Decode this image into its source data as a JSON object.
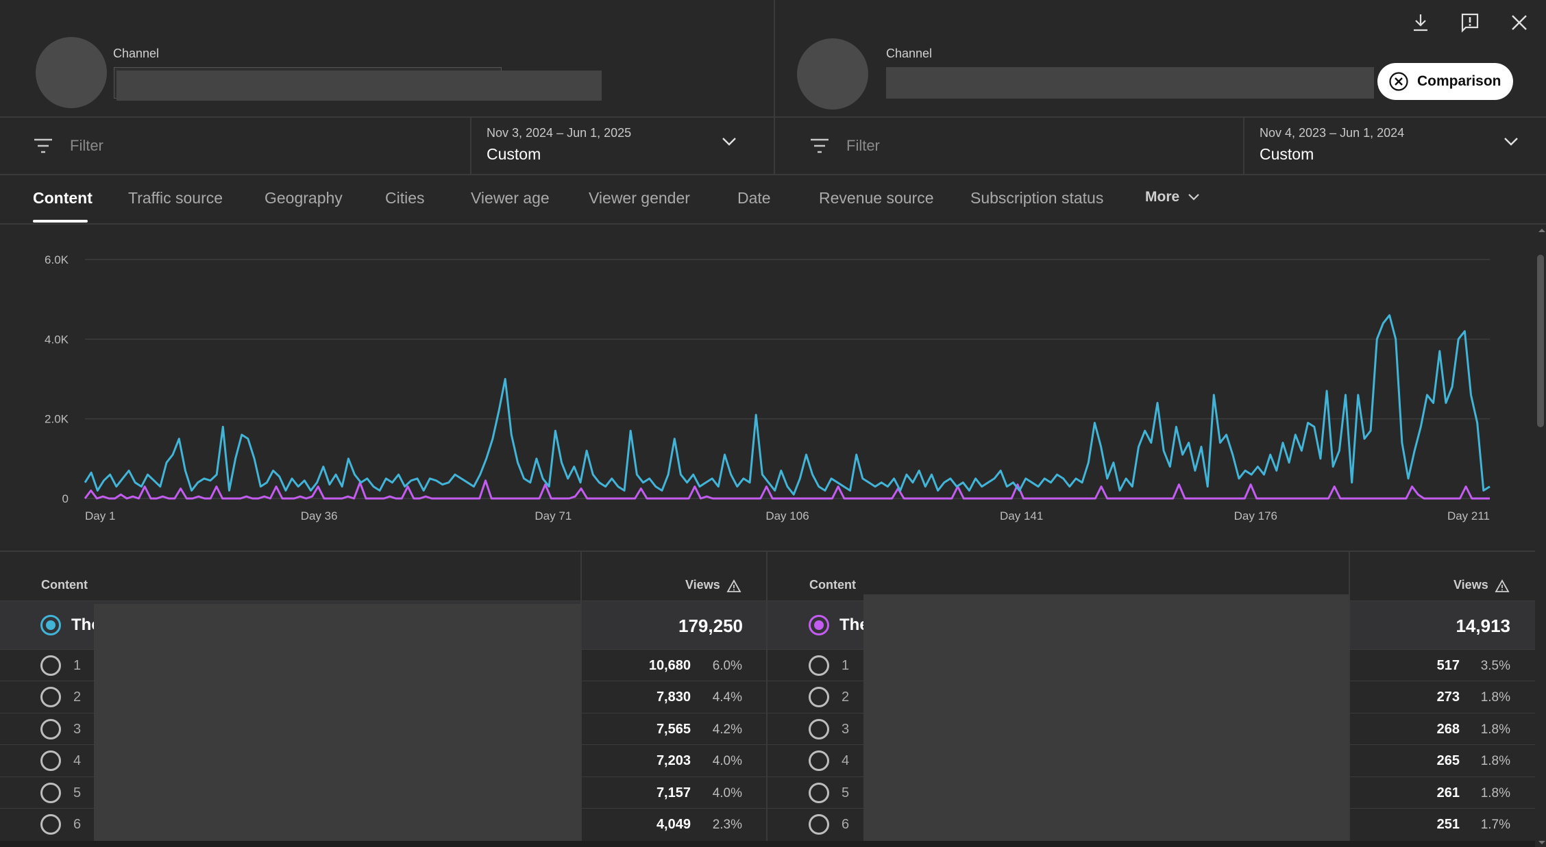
{
  "header": {
    "left": {
      "channel_label": "Channel"
    },
    "right": {
      "channel_label": "Channel"
    },
    "comparison_button": "Comparison",
    "icons": [
      "download-icon",
      "feedback-icon",
      "close-icon"
    ]
  },
  "filters": {
    "left": {
      "placeholder": "Filter",
      "date_range": "Nov 3, 2024 – Jun 1, 2025",
      "preset": "Custom"
    },
    "right": {
      "placeholder": "Filter",
      "date_range": "Nov 4, 2023 – Jun 1, 2024",
      "preset": "Custom"
    }
  },
  "tabs": [
    "Content",
    "Traffic source",
    "Geography",
    "Cities",
    "Viewer age",
    "Viewer gender",
    "Date",
    "Revenue source",
    "Subscription status",
    "More"
  ],
  "active_tab": "Content",
  "chart_data": {
    "type": "line",
    "y_ticks": [
      "6.0K",
      "4.0K",
      "2.0K",
      "0"
    ],
    "ylim": [
      0,
      6000
    ],
    "x_ticks": [
      "Day 1",
      "Day 36",
      "Day 71",
      "Day 106",
      "Day 141",
      "Day 176",
      "Day 211"
    ],
    "grid": true,
    "colors": {
      "primary": "#41b4d8",
      "secondary": "#c35cf0"
    },
    "series": [
      {
        "values": [
          400,
          650,
          200,
          450,
          600,
          300,
          500,
          700,
          400,
          300,
          600,
          450,
          300,
          900,
          1100,
          1500,
          700,
          200,
          400,
          500,
          450,
          600,
          1800,
          200,
          1000,
          1600,
          1500,
          1000,
          300,
          400,
          700,
          550,
          200,
          500,
          300,
          450,
          200,
          400,
          800,
          350,
          600,
          300,
          1000,
          600,
          400,
          500,
          300,
          200,
          500,
          400,
          600,
          300,
          450,
          500,
          200,
          500,
          450,
          350,
          400,
          600,
          500,
          400,
          300,
          600,
          1000,
          1500,
          2200,
          3000,
          1600,
          900,
          500,
          400,
          1000,
          500,
          300,
          1700,
          900,
          500,
          800,
          400,
          1200,
          600,
          400,
          300,
          500,
          300,
          200,
          1700,
          600,
          400,
          500,
          300,
          200,
          600,
          1500,
          600,
          400,
          600,
          300,
          400,
          500,
          300,
          1100,
          600,
          300,
          500,
          400,
          2100,
          600,
          400,
          200,
          700,
          300,
          100,
          500,
          1100,
          600,
          300,
          200,
          500,
          400,
          300,
          200,
          1100,
          500,
          400,
          300,
          400,
          300,
          500,
          200,
          600,
          400,
          700,
          300,
          600,
          200,
          400,
          500,
          300,
          400,
          200,
          500,
          300,
          400,
          500,
          700,
          300,
          400,
          200,
          500,
          400,
          300,
          500,
          400,
          600,
          500,
          300,
          500,
          400,
          900,
          1900,
          1300,
          500,
          900,
          200,
          500,
          300,
          1300,
          1700,
          1400,
          2400,
          1200,
          800,
          1800,
          1100,
          1400,
          700,
          1300,
          300,
          2600,
          1400,
          1600,
          1100,
          500,
          700,
          600,
          800,
          600,
          1100,
          700,
          1400,
          900,
          1600,
          1200,
          1900,
          1800,
          1000,
          2700,
          800,
          1200,
          2600,
          400,
          2600,
          1500,
          1700,
          4000,
          4400,
          4600,
          4000,
          1400,
          500,
          1200,
          1800,
          2600,
          2400,
          3700,
          2400,
          2800,
          4000,
          4200,
          2600,
          1900,
          200,
          300
        ]
      },
      {
        "values": [
          0,
          200,
          0,
          50,
          0,
          0,
          100,
          0,
          50,
          0,
          300,
          0,
          0,
          50,
          0,
          0,
          250,
          0,
          0,
          50,
          0,
          0,
          300,
          0,
          0,
          0,
          0,
          50,
          0,
          0,
          50,
          0,
          300,
          0,
          0,
          0,
          50,
          0,
          50,
          300,
          0,
          0,
          0,
          0,
          50,
          0,
          400,
          0,
          0,
          0,
          0,
          50,
          0,
          0,
          300,
          0,
          0,
          50,
          0,
          0,
          0,
          0,
          0,
          0,
          0,
          0,
          0,
          450,
          0,
          0,
          0,
          0,
          0,
          0,
          0,
          0,
          0,
          350,
          0,
          0,
          0,
          0,
          50,
          250,
          0,
          0,
          0,
          0,
          0,
          0,
          0,
          0,
          0,
          250,
          0,
          0,
          0,
          0,
          0,
          0,
          0,
          0,
          300,
          0,
          50,
          0,
          0,
          0,
          0,
          0,
          0,
          0,
          0,
          0,
          300,
          0,
          0,
          0,
          0,
          0,
          0,
          0,
          0,
          0,
          0,
          0,
          300,
          0,
          0,
          0,
          0,
          0,
          0,
          0,
          0,
          0,
          250,
          0,
          0,
          0,
          0,
          0,
          0,
          0,
          0,
          0,
          300,
          0,
          0,
          0,
          0,
          0,
          0,
          0,
          0,
          0,
          350,
          0,
          0,
          0,
          0,
          0,
          0,
          0,
          0,
          0,
          0,
          0,
          0,
          0,
          300,
          0,
          0,
          0,
          0,
          0,
          0,
          0,
          0,
          0,
          0,
          0,
          0,
          350,
          0,
          0,
          0,
          0,
          0,
          0,
          0,
          0,
          0,
          0,
          0,
          350,
          0,
          0,
          0,
          0,
          0,
          0,
          0,
          0,
          0,
          0,
          0,
          0,
          0,
          300,
          0,
          0,
          0,
          0,
          0,
          0,
          0,
          0,
          0,
          0,
          0,
          0,
          300,
          100,
          0,
          0,
          0,
          0,
          0,
          0,
          0,
          300,
          0,
          0,
          0,
          0
        ]
      }
    ]
  },
  "tables": {
    "left": {
      "header_content": "Content",
      "header_views": "Views",
      "total_prefix": "The",
      "total_views": "179,250",
      "accent": "#41b4d8",
      "rows": [
        {
          "rank": "1",
          "views": "10,680",
          "pct": "6.0%"
        },
        {
          "rank": "2",
          "views": "7,830",
          "pct": "4.4%"
        },
        {
          "rank": "3",
          "views": "7,565",
          "pct": "4.2%"
        },
        {
          "rank": "4",
          "views": "7,203",
          "pct": "4.0%"
        },
        {
          "rank": "5",
          "views": "7,157",
          "pct": "4.0%"
        },
        {
          "rank": "6",
          "views": "4,049",
          "pct": "2.3%"
        }
      ]
    },
    "right": {
      "header_content": "Content",
      "header_views": "Views",
      "total_prefix": "The",
      "total_views": "14,913",
      "accent": "#c35cf0",
      "rows": [
        {
          "rank": "1",
          "views": "517",
          "pct": "3.5%"
        },
        {
          "rank": "2",
          "views": "273",
          "pct": "1.8%"
        },
        {
          "rank": "3",
          "views": "268",
          "pct": "1.8%"
        },
        {
          "rank": "4",
          "views": "265",
          "pct": "1.8%"
        },
        {
          "rank": "5",
          "views": "261",
          "pct": "1.8%"
        },
        {
          "rank": "6",
          "views": "251",
          "pct": "1.7%"
        }
      ]
    }
  }
}
